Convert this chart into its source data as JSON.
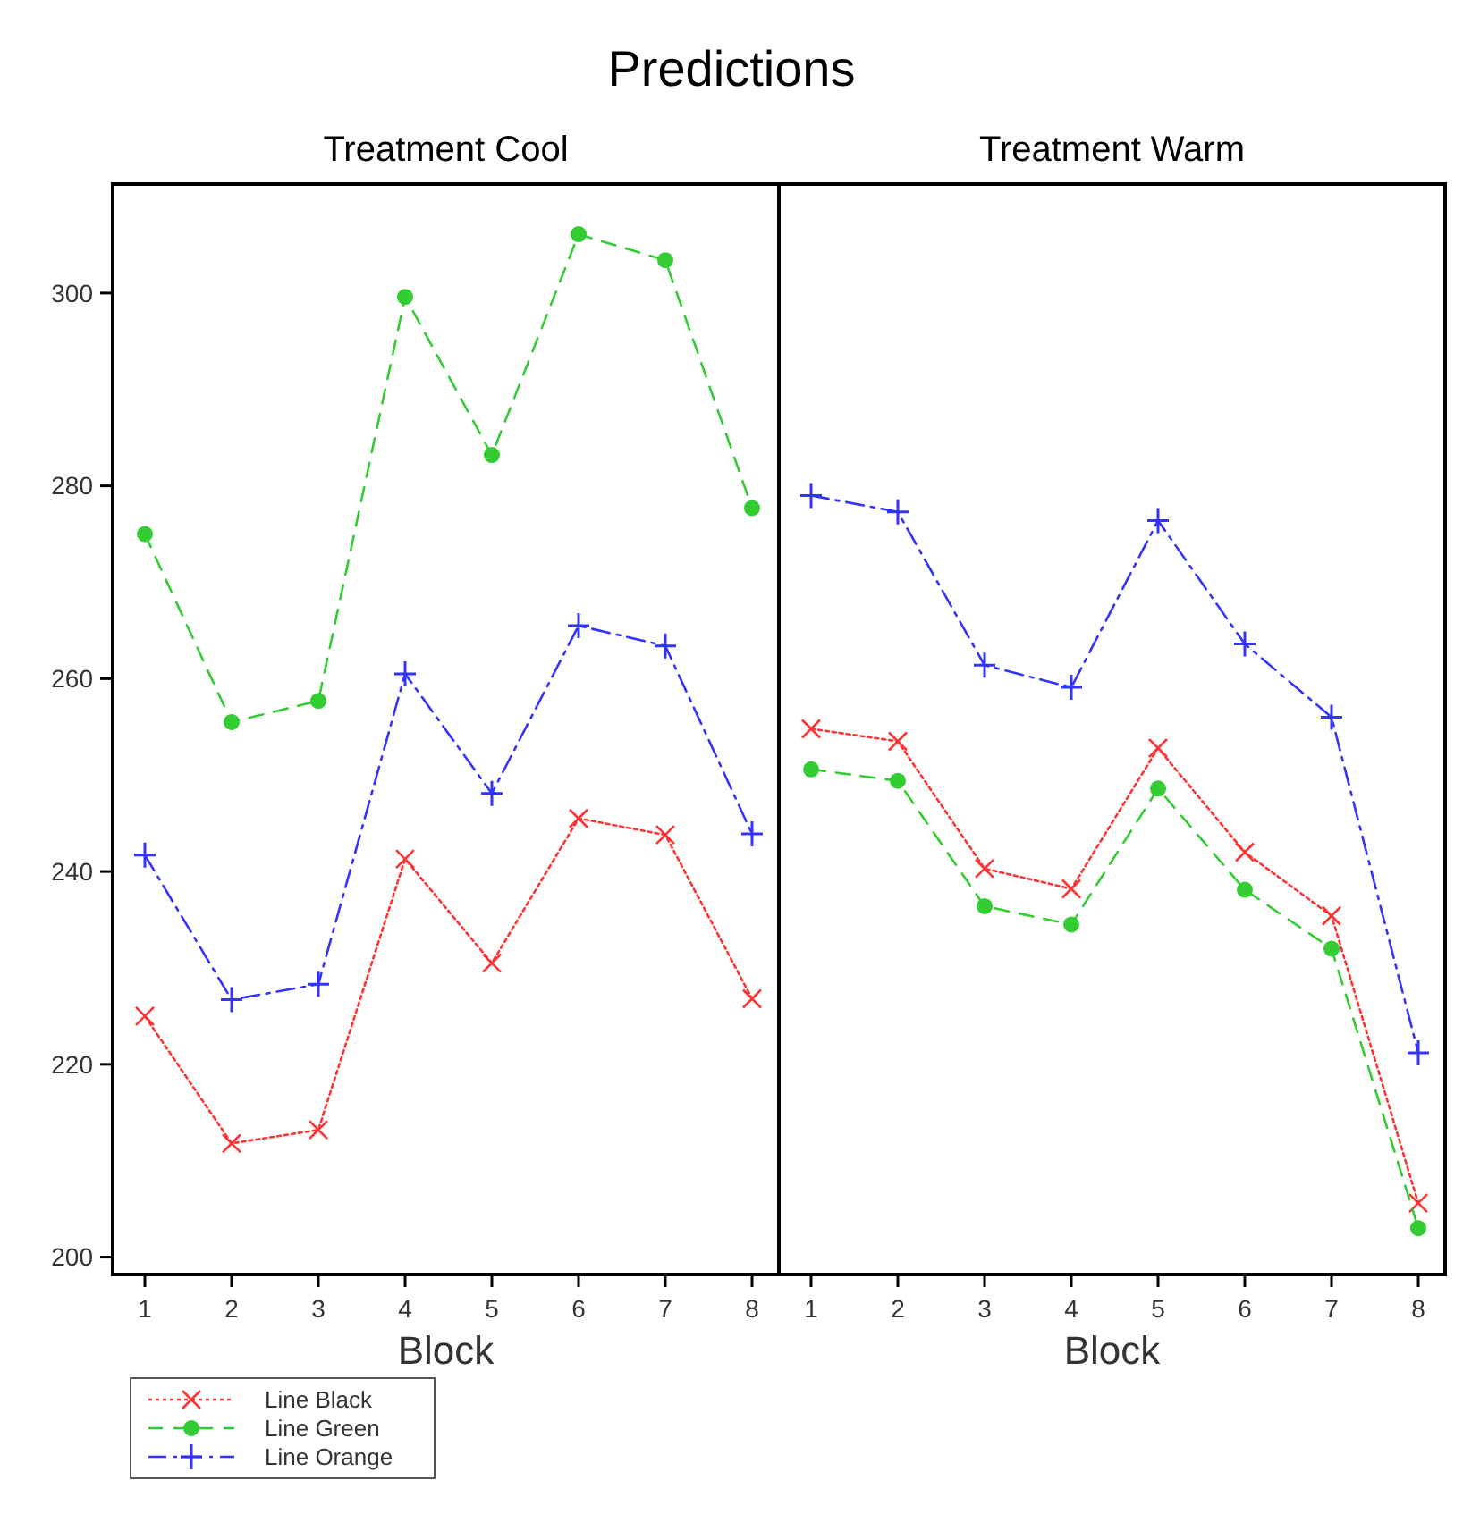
{
  "chart_data": [
    {
      "type": "line",
      "title": "Predictions",
      "subtitle": "Treatment Cool",
      "xlabel": "Block",
      "categories": [
        "1",
        "2",
        "3",
        "4",
        "5",
        "6",
        "7",
        "8"
      ],
      "ylim": [
        198.2,
        311.3
      ],
      "yticks": [
        200,
        220,
        240,
        260,
        280,
        300
      ],
      "grid": false,
      "legend": "bottom left",
      "series": [
        {
          "name": "Line Black",
          "color": "#ff3333",
          "marker": "cross",
          "line_style": "dotted",
          "values": [
            225.0,
            211.8,
            213.2,
            241.3,
            230.5,
            245.5,
            243.8,
            226.8
          ]
        },
        {
          "name": "Line Green",
          "color": "#33cc33",
          "marker": "circle",
          "line_style": "dashed",
          "values": [
            275.0,
            255.5,
            257.7,
            299.6,
            283.2,
            306.1,
            303.4,
            277.7
          ]
        },
        {
          "name": "Line Orange",
          "color": "#3333ff",
          "marker": "plus",
          "line_style": "dashdot",
          "values": [
            241.7,
            226.7,
            228.3,
            260.5,
            248.1,
            265.5,
            263.4,
            243.9
          ]
        }
      ]
    },
    {
      "type": "line",
      "subtitle": "Treatment Warm",
      "xlabel": "Block",
      "categories": [
        "1",
        "2",
        "3",
        "4",
        "5",
        "6",
        "7",
        "8"
      ],
      "ylim": [
        198.2,
        311.3
      ],
      "yticks": [
        200,
        220,
        240,
        260,
        280,
        300
      ],
      "tick_labels": "x",
      "grid": false,
      "legend": false,
      "series": [
        {
          "color": "#ff3333",
          "marker": "cross",
          "line_style": "dotted",
          "values": [
            254.8,
            253.5,
            240.3,
            238.2,
            252.8,
            242.0,
            235.4,
            205.6
          ]
        },
        {
          "color": "#33cc33",
          "marker": "circle",
          "line_style": "dashed",
          "values": [
            250.6,
            249.4,
            236.4,
            234.5,
            248.6,
            238.1,
            232.0,
            203.0
          ]
        },
        {
          "color": "#3333ff",
          "marker": "plus",
          "line_style": "dashdot",
          "values": [
            279.0,
            277.3,
            261.4,
            259.1,
            276.4,
            263.6,
            256.0,
            221.2
          ]
        }
      ]
    }
  ]
}
